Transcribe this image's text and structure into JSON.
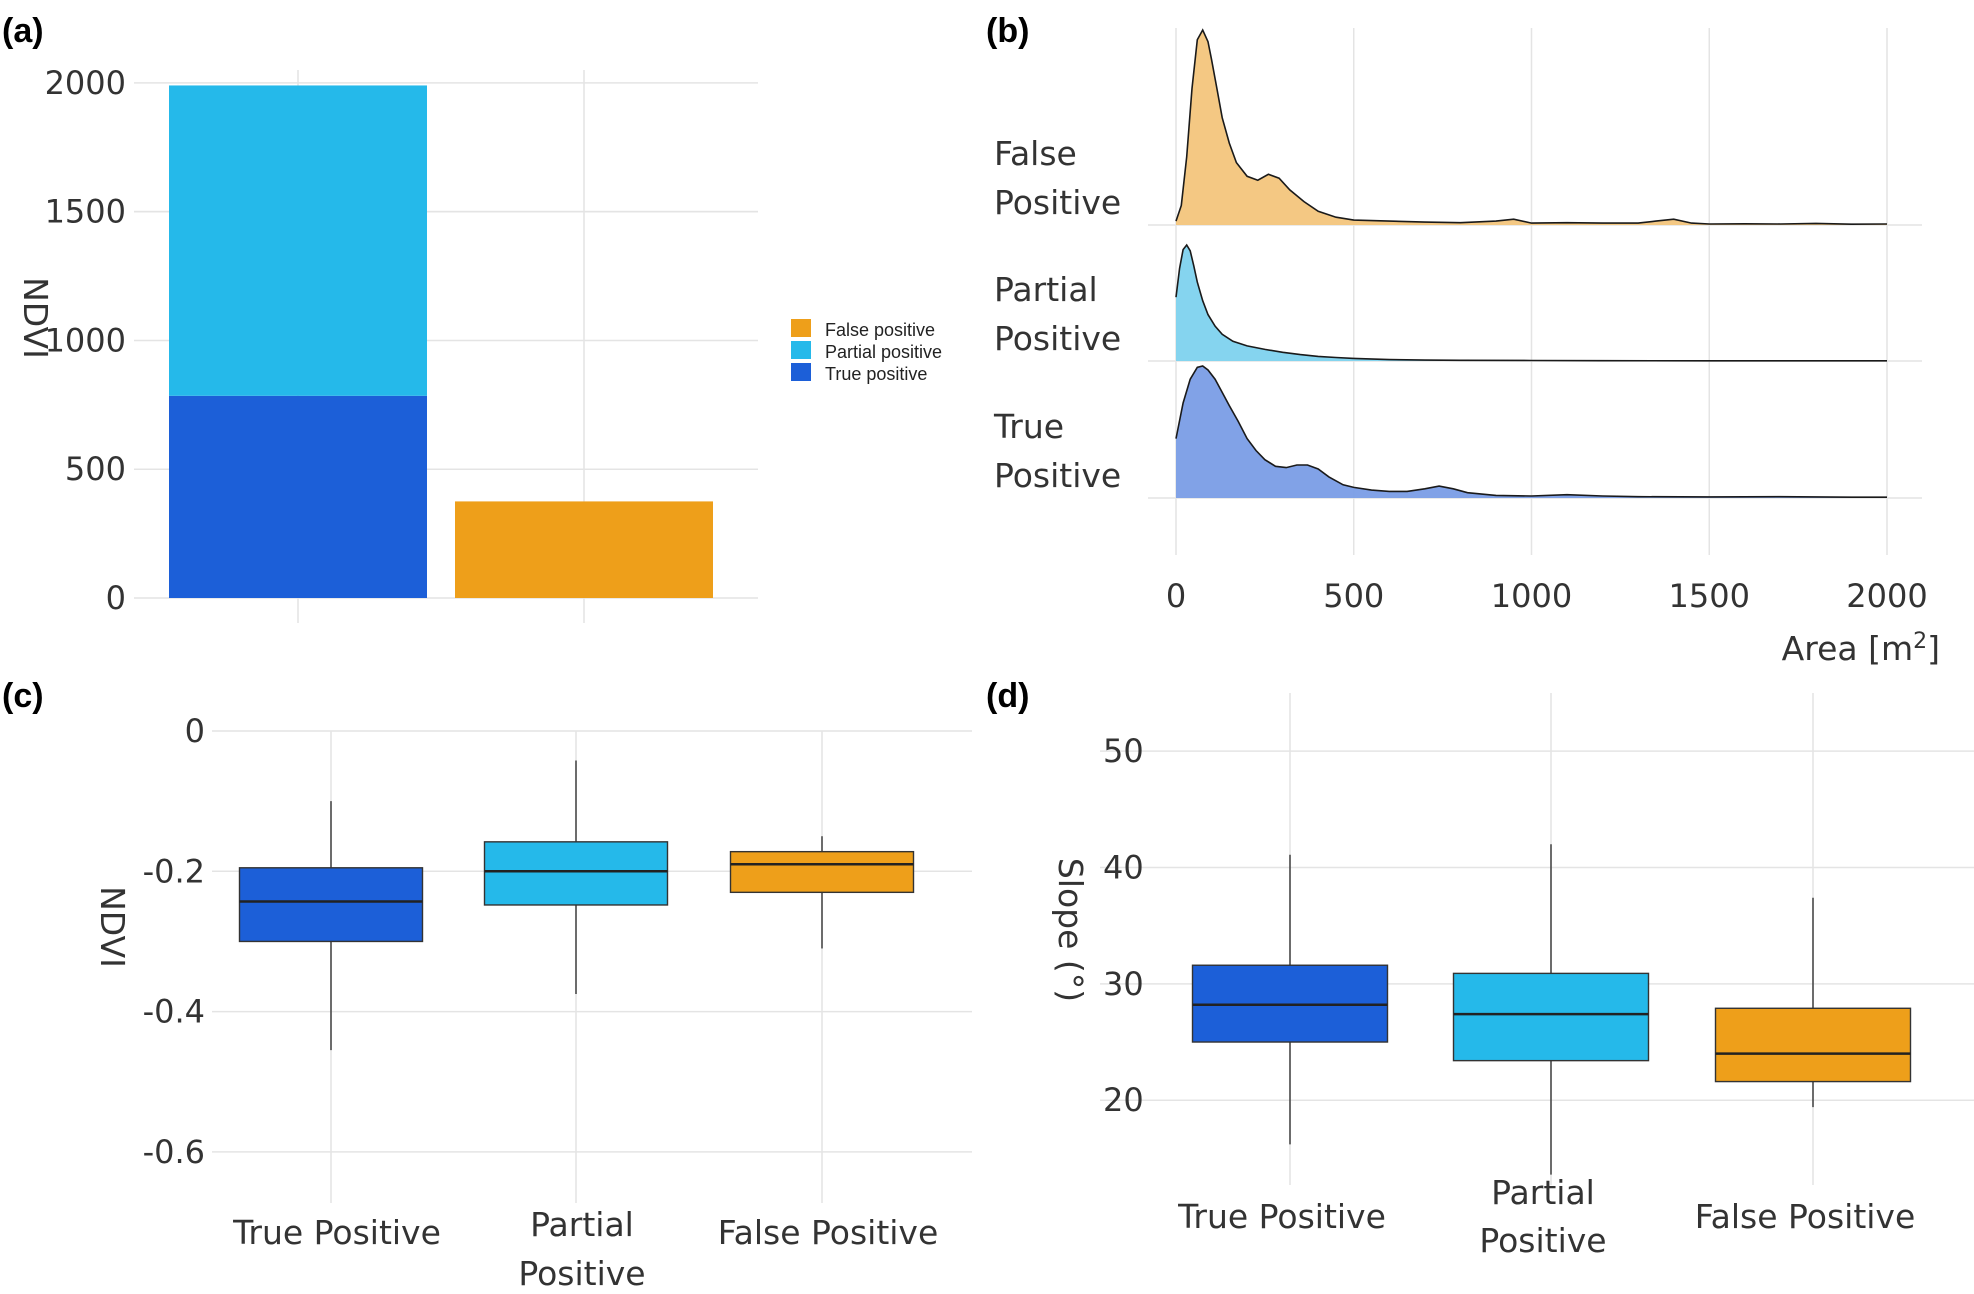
{
  "colors": {
    "true_positive": "#1c5fd8",
    "partial_positive": "#25b9ea",
    "false_positive": "#ee9f1a",
    "density_true": "#7a9de6",
    "density_partial": "#7ed2ee",
    "density_false": "#f3c57c"
  },
  "chart_data": [
    {
      "panel": "(a)",
      "type": "bar",
      "stacked": true,
      "title": "",
      "xlabel": "",
      "ylabel": "NDVI",
      "ylim": [
        0,
        2050
      ],
      "yticks": [
        "0",
        "500",
        "1000",
        "1500",
        "2000"
      ],
      "ytick_values": [
        0,
        500,
        1000,
        1500,
        2000
      ],
      "categories": [
        "",
        ""
      ],
      "series": [
        {
          "name": "True positive",
          "values": [
            785,
            0
          ]
        },
        {
          "name": "Partial positive",
          "values": [
            1205,
            0
          ]
        },
        {
          "name": "False positive",
          "values": [
            0,
            375
          ]
        }
      ],
      "legend": {
        "position": "right",
        "items": [
          "False positive",
          "Partial positive",
          "True positive"
        ]
      }
    },
    {
      "panel": "(b)",
      "type": "area",
      "title": "",
      "xlabel": "Area [m",
      "xlabel_sup": "2",
      "xlabel_end": "]",
      "xlim": [
        0,
        2000
      ],
      "xticks": [
        "0",
        "500",
        "1000",
        "1500",
        "2000"
      ],
      "xtick_values": [
        0,
        500,
        1000,
        1500,
        2000
      ],
      "ridges": [
        {
          "name_line1": "False",
          "name_line2": "Positive",
          "x": [
            0,
            15,
            30,
            45,
            60,
            75,
            90,
            100,
            115,
            130,
            150,
            170,
            200,
            230,
            260,
            290,
            320,
            360,
            400,
            450,
            500,
            600,
            700,
            800,
            900,
            950,
            1000,
            1100,
            1200,
            1300,
            1350,
            1400,
            1450,
            1500,
            1600,
            1700,
            1800,
            1900,
            2000
          ],
          "density": [
            0.02,
            0.1,
            0.35,
            0.7,
            0.95,
            1.0,
            0.94,
            0.85,
            0.7,
            0.55,
            0.42,
            0.32,
            0.25,
            0.23,
            0.26,
            0.24,
            0.18,
            0.12,
            0.07,
            0.04,
            0.025,
            0.02,
            0.015,
            0.012,
            0.02,
            0.03,
            0.01,
            0.012,
            0.01,
            0.01,
            0.02,
            0.03,
            0.01,
            0.005,
            0.006,
            0.005,
            0.008,
            0.004,
            0.005
          ]
        },
        {
          "name_line1": "Partial",
          "name_line2": "Positive",
          "x": [
            0,
            10,
            20,
            30,
            40,
            50,
            60,
            75,
            90,
            110,
            130,
            160,
            200,
            250,
            300,
            350,
            400,
            450,
            500,
            600,
            700,
            800,
            1000,
            1200,
            1500,
            1800,
            2000
          ],
          "density": [
            0.55,
            0.8,
            0.96,
            1.0,
            0.95,
            0.82,
            0.68,
            0.52,
            0.4,
            0.3,
            0.23,
            0.17,
            0.13,
            0.1,
            0.075,
            0.055,
            0.04,
            0.03,
            0.022,
            0.012,
            0.008,
            0.006,
            0.004,
            0.003,
            0.002,
            0.002,
            0.002
          ]
        },
        {
          "name_line1": "True",
          "name_line2": "Positive",
          "x": [
            0,
            20,
            40,
            60,
            75,
            90,
            110,
            130,
            150,
            175,
            200,
            225,
            250,
            280,
            310,
            340,
            370,
            400,
            430,
            470,
            500,
            550,
            600,
            650,
            700,
            740,
            780,
            820,
            900,
            1000,
            1100,
            1200,
            1300,
            1500,
            1700,
            1900,
            2000
          ],
          "density": [
            0.45,
            0.72,
            0.9,
            0.99,
            1.0,
            0.97,
            0.9,
            0.8,
            0.7,
            0.58,
            0.45,
            0.36,
            0.29,
            0.24,
            0.23,
            0.25,
            0.25,
            0.22,
            0.16,
            0.1,
            0.08,
            0.06,
            0.05,
            0.05,
            0.07,
            0.09,
            0.07,
            0.04,
            0.02,
            0.015,
            0.025,
            0.015,
            0.01,
            0.008,
            0.01,
            0.006,
            0.006
          ]
        }
      ]
    },
    {
      "panel": "(c)",
      "type": "box",
      "title": "",
      "xlabel": "",
      "ylabel": "NDVI",
      "ylim": [
        -0.67,
        0.0
      ],
      "yticks": [
        "0",
        "-0.2",
        "-0.4",
        "-0.6"
      ],
      "ytick_values": [
        0,
        -0.2,
        -0.4,
        -0.6
      ],
      "boxes": [
        {
          "name_line1": "True Positive",
          "name_line2": "",
          "min": -0.455,
          "q1": -0.3,
          "median": -0.243,
          "q3": -0.195,
          "max": -0.1
        },
        {
          "name_line1": "Partial",
          "name_line2": "Positive",
          "min": -0.375,
          "q1": -0.248,
          "median": -0.2,
          "q3": -0.158,
          "max": -0.042
        },
        {
          "name_line1": "False Positive",
          "name_line2": "",
          "min": -0.31,
          "q1": -0.23,
          "median": -0.19,
          "q3": -0.172,
          "max": -0.15
        }
      ]
    },
    {
      "panel": "(d)",
      "type": "box",
      "title": "",
      "xlabel": "",
      "ylabel": "Slope (°)",
      "ylim": [
        14,
        55
      ],
      "yticks": [
        "20",
        "30",
        "40",
        "50"
      ],
      "ytick_values": [
        20,
        30,
        40,
        50
      ],
      "boxes": [
        {
          "name_line1": "True Positive",
          "name_line2": "",
          "min": 16.2,
          "q1": 25.0,
          "median": 28.2,
          "q3": 31.6,
          "max": 41.1
        },
        {
          "name_line1": "Partial",
          "name_line2": "Positive",
          "min": 13.6,
          "q1": 23.4,
          "median": 27.4,
          "q3": 30.9,
          "max": 42.0
        },
        {
          "name_line1": "False Positive",
          "name_line2": "",
          "min": 19.4,
          "q1": 21.6,
          "median": 24.0,
          "q3": 27.9,
          "max": 37.4
        }
      ]
    }
  ]
}
